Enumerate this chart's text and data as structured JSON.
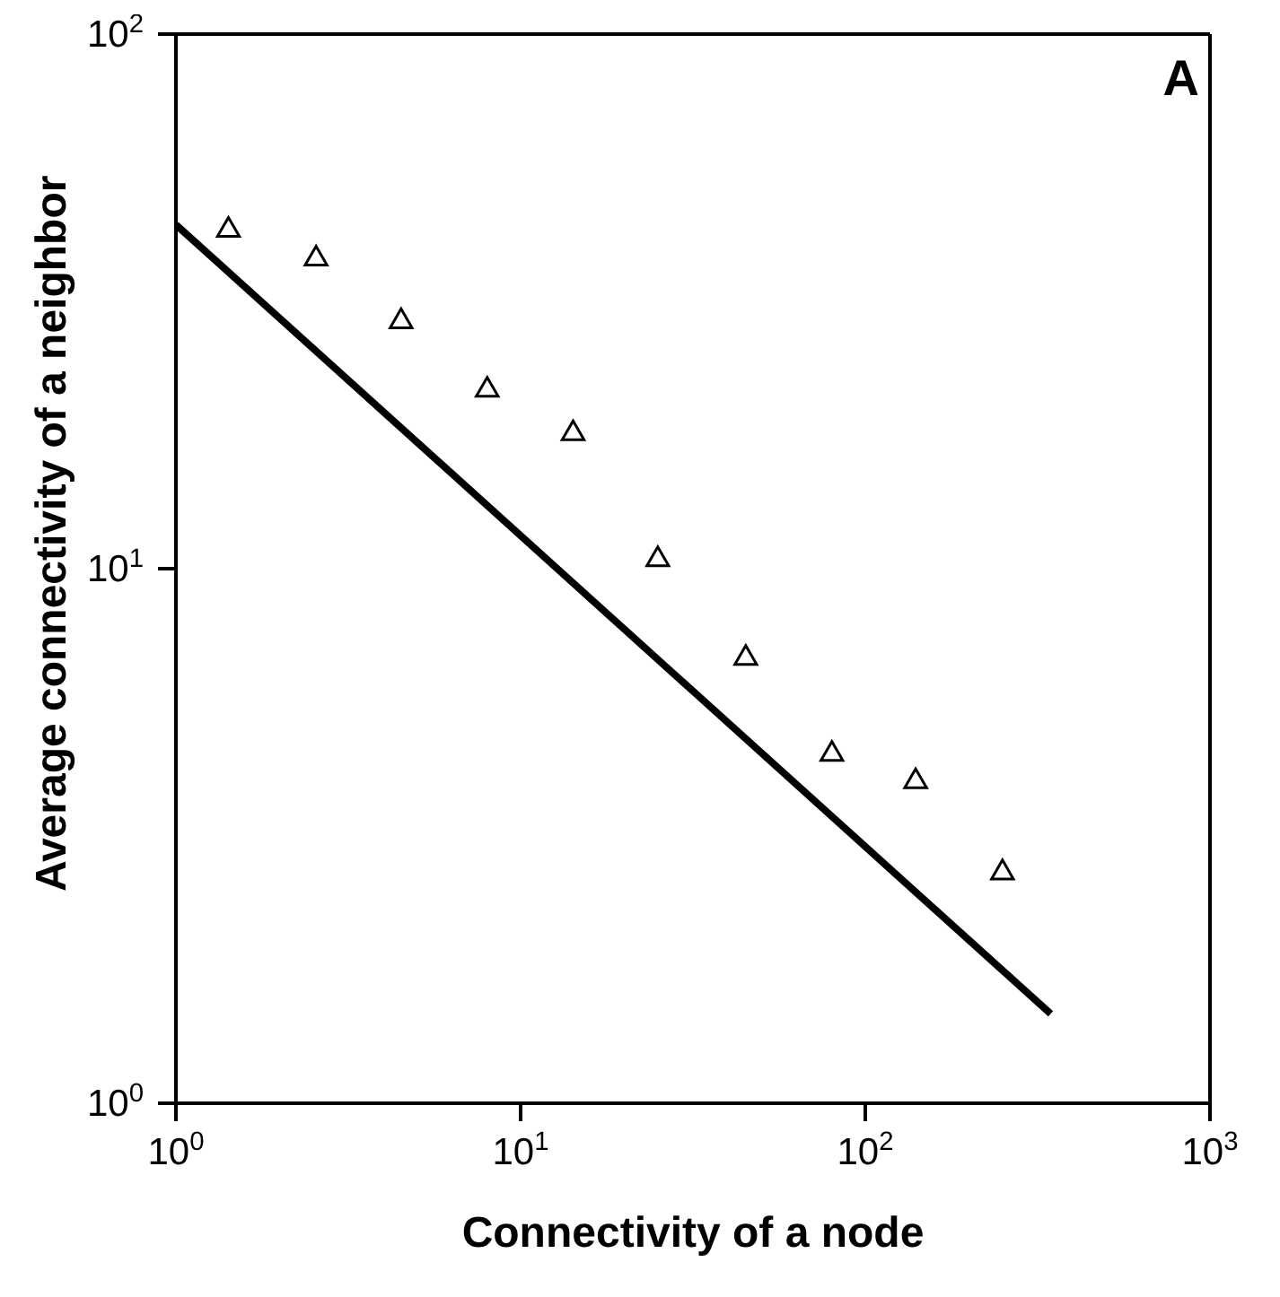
{
  "chart_data": {
    "type": "scatter",
    "xlabel": "Connectivity of a node",
    "ylabel": "Average connectivity of a neighbor",
    "annotations": [
      "A"
    ],
    "log": "xy",
    "marker": "triangle",
    "xlim": [
      1,
      1000
    ],
    "ylim": [
      1,
      100
    ],
    "xticks": [
      {
        "value": 1,
        "label": "10$^{0}$"
      },
      {
        "value": 10,
        "label": "10$^{1}$"
      },
      {
        "value": 100,
        "label": "10$^{2}$"
      },
      {
        "value": 1000,
        "label": "10$^{3}$"
      }
    ],
    "yticks": [
      {
        "value": 1,
        "label": "10$^{0}$"
      },
      {
        "value": 10,
        "label": "10$^{1}$"
      },
      {
        "value": 100,
        "label": "10$^{2}$"
      }
    ],
    "series": [
      {
        "color": "#000000",
        "x": [
          1.42,
          2.55,
          4.5,
          8.0,
          14.2,
          25,
          45,
          80,
          140,
          250
        ],
        "values": [
          43,
          38,
          29,
          21.6,
          17.9,
          10.4,
          6.8,
          4.5,
          4.0,
          2.7
        ]
      },
      {
        "type": "line",
        "color": "#000000",
        "marker": "none",
        "line_style": "solid",
        "x": [
          1,
          345
        ],
        "values": [
          44,
          1.47
        ]
      }
    ]
  }
}
